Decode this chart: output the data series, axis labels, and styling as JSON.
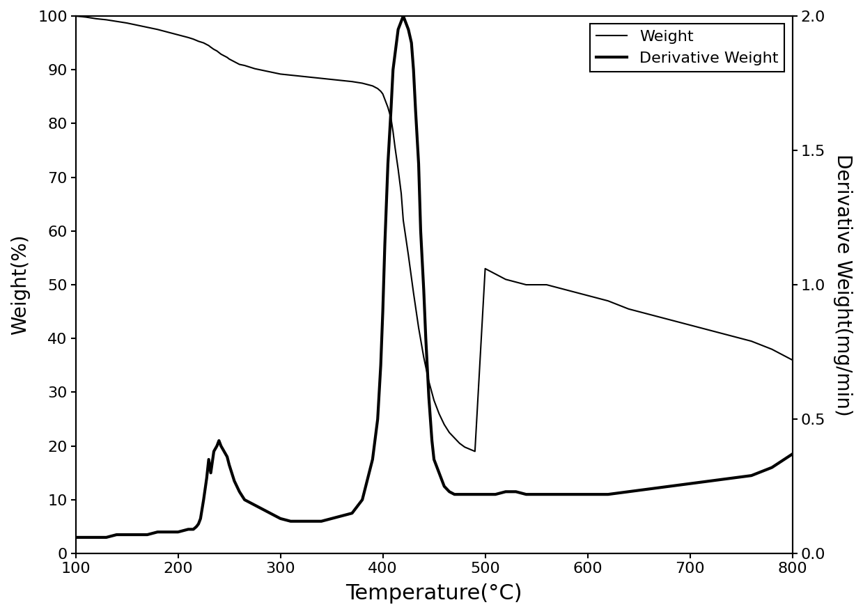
{
  "title": "",
  "xlabel": "Temperature(°C)",
  "ylabel_left": "Weight(%)",
  "ylabel_right": "Derivative Weight(mg/min)",
  "xlim": [
    100,
    800
  ],
  "ylim_left": [
    0,
    100
  ],
  "ylim_right": [
    0,
    2.0
  ],
  "xticks": [
    100,
    200,
    300,
    400,
    500,
    600,
    700,
    800
  ],
  "yticks_left": [
    0,
    10,
    20,
    30,
    40,
    50,
    60,
    70,
    80,
    90,
    100
  ],
  "yticks_right": [
    0.0,
    0.5,
    1.0,
    1.5,
    2.0
  ],
  "legend_labels": [
    "Weight",
    "Derivative Weight"
  ],
  "weight_lw": 1.5,
  "deriv_lw": 3.0,
  "weight_color": "#000000",
  "deriv_color": "#000000",
  "background_color": "#ffffff",
  "weight_x": [
    100,
    110,
    120,
    130,
    140,
    150,
    160,
    170,
    180,
    190,
    200,
    210,
    215,
    220,
    225,
    228,
    230,
    232,
    235,
    238,
    240,
    242,
    245,
    248,
    250,
    255,
    260,
    265,
    270,
    275,
    280,
    285,
    290,
    295,
    300,
    310,
    320,
    330,
    340,
    350,
    360,
    370,
    380,
    390,
    395,
    398,
    400,
    402,
    405,
    408,
    410,
    412,
    415,
    418,
    420,
    425,
    430,
    435,
    440,
    445,
    450,
    455,
    460,
    465,
    470,
    475,
    480,
    490,
    500,
    510,
    520,
    530,
    540,
    550,
    560,
    570,
    580,
    590,
    600,
    620,
    640,
    660,
    680,
    700,
    720,
    740,
    760,
    780,
    800
  ],
  "weight_y": [
    100,
    99.8,
    99.5,
    99.3,
    99.0,
    98.7,
    98.3,
    97.9,
    97.5,
    97.0,
    96.5,
    96.0,
    95.7,
    95.3,
    95.0,
    94.7,
    94.5,
    94.2,
    93.8,
    93.5,
    93.2,
    92.9,
    92.6,
    92.3,
    92.0,
    91.5,
    91.0,
    90.8,
    90.5,
    90.2,
    90.0,
    89.8,
    89.6,
    89.4,
    89.2,
    89.0,
    88.8,
    88.6,
    88.4,
    88.2,
    88.0,
    87.8,
    87.5,
    87.0,
    86.5,
    86.0,
    85.5,
    84.5,
    83.0,
    81.0,
    78.5,
    75.5,
    71.5,
    67.0,
    62.0,
    55.5,
    48.5,
    42.0,
    36.5,
    32.0,
    28.5,
    26.0,
    24.0,
    22.5,
    21.5,
    20.5,
    19.8,
    19.0,
    53.0,
    52.0,
    51.0,
    50.5,
    50.0,
    50.0,
    50.0,
    49.5,
    49.0,
    48.5,
    48.0,
    47.0,
    45.5,
    44.5,
    43.5,
    42.5,
    41.5,
    40.5,
    39.5,
    38.0,
    36.0
  ],
  "deriv_x": [
    100,
    110,
    120,
    130,
    140,
    150,
    160,
    170,
    180,
    190,
    200,
    210,
    215,
    218,
    220,
    222,
    225,
    228,
    230,
    232,
    235,
    238,
    240,
    242,
    245,
    248,
    250,
    255,
    260,
    265,
    270,
    275,
    280,
    285,
    290,
    295,
    300,
    310,
    320,
    330,
    340,
    350,
    360,
    370,
    380,
    390,
    395,
    398,
    400,
    402,
    405,
    408,
    410,
    415,
    420,
    425,
    428,
    430,
    432,
    435,
    437,
    440,
    442,
    445,
    448,
    450,
    455,
    460,
    465,
    470,
    480,
    490,
    500,
    510,
    520,
    530,
    540,
    550,
    560,
    570,
    580,
    590,
    600,
    620,
    640,
    660,
    680,
    700,
    720,
    740,
    760,
    780,
    800
  ],
  "deriv_y": [
    0.06,
    0.06,
    0.06,
    0.06,
    0.07,
    0.07,
    0.07,
    0.07,
    0.08,
    0.08,
    0.08,
    0.09,
    0.09,
    0.1,
    0.11,
    0.13,
    0.2,
    0.28,
    0.35,
    0.3,
    0.38,
    0.4,
    0.42,
    0.4,
    0.38,
    0.36,
    0.33,
    0.27,
    0.23,
    0.2,
    0.19,
    0.18,
    0.17,
    0.16,
    0.15,
    0.14,
    0.13,
    0.12,
    0.12,
    0.12,
    0.12,
    0.13,
    0.14,
    0.15,
    0.2,
    0.35,
    0.5,
    0.7,
    0.9,
    1.15,
    1.45,
    1.65,
    1.8,
    1.95,
    2.0,
    1.95,
    1.9,
    1.8,
    1.65,
    1.45,
    1.2,
    0.98,
    0.8,
    0.58,
    0.42,
    0.35,
    0.3,
    0.25,
    0.23,
    0.22,
    0.22,
    0.22,
    0.22,
    0.22,
    0.23,
    0.23,
    0.22,
    0.22,
    0.22,
    0.22,
    0.22,
    0.22,
    0.22,
    0.22,
    0.23,
    0.24,
    0.25,
    0.26,
    0.27,
    0.28,
    0.29,
    0.32,
    0.37
  ]
}
